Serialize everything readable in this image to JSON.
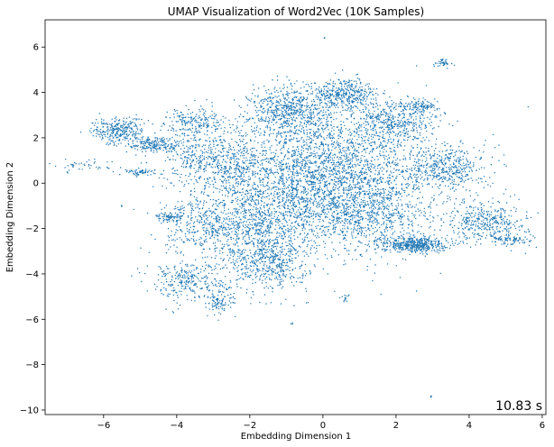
{
  "chart_data": {
    "type": "scatter",
    "title": "UMAP Visualization of Word2Vec (10K Samples)",
    "xlabel": "Embedding Dimension 1",
    "ylabel": "Embedding Dimension 2",
    "xlim": [
      -7.6,
      6.1
    ],
    "ylim": [
      -10.2,
      7.2
    ],
    "xticks": [
      -6,
      -4,
      -2,
      0,
      2,
      4,
      6
    ],
    "yticks": [
      6,
      4,
      2,
      0,
      -2,
      -4,
      -6,
      -8,
      -10
    ],
    "grid": false,
    "legend": "none",
    "marker_color": "#1f77b4",
    "n_points": 10000,
    "clusters": [
      {
        "cx": 0.0,
        "cy": 0.2,
        "sx": 1.55,
        "sy": 1.45,
        "w": 34
      },
      {
        "cx": -0.9,
        "cy": 3.2,
        "sx": 0.55,
        "sy": 0.55,
        "w": 6
      },
      {
        "cx": 0.6,
        "cy": 3.9,
        "sx": 0.45,
        "sy": 0.35,
        "w": 4
      },
      {
        "cx": -1.5,
        "cy": -3.5,
        "sx": 0.55,
        "sy": 0.65,
        "w": 5
      },
      {
        "cx": 2.5,
        "cy": -2.7,
        "sx": 0.45,
        "sy": 0.18,
        "w": 5
      },
      {
        "cx": -3.7,
        "cy": -4.3,
        "sx": 0.55,
        "sy": 0.45,
        "w": 3
      },
      {
        "cx": -5.6,
        "cy": 2.3,
        "sx": 0.35,
        "sy": 0.3,
        "w": 3
      },
      {
        "cx": -4.6,
        "cy": 1.7,
        "sx": 0.35,
        "sy": 0.18,
        "w": 2
      },
      {
        "cx": -3.0,
        "cy": 1.0,
        "sx": 0.7,
        "sy": 0.6,
        "w": 5
      },
      {
        "cx": 3.4,
        "cy": 0.7,
        "sx": 0.5,
        "sy": 0.5,
        "w": 4
      },
      {
        "cx": 4.5,
        "cy": -1.7,
        "sx": 0.55,
        "sy": 0.45,
        "w": 4
      },
      {
        "cx": 2.0,
        "cy": 2.7,
        "sx": 0.55,
        "sy": 0.45,
        "w": 4
      },
      {
        "cx": -1.8,
        "cy": -1.9,
        "sx": 0.8,
        "sy": 0.8,
        "w": 6
      },
      {
        "cx": -3.3,
        "cy": -1.9,
        "sx": 0.5,
        "sy": 0.6,
        "w": 3
      },
      {
        "cx": -3.5,
        "cy": 2.7,
        "sx": 0.4,
        "sy": 0.3,
        "w": 2
      },
      {
        "cx": -2.8,
        "cy": -5.2,
        "sx": 0.2,
        "sy": 0.3,
        "w": 1
      },
      {
        "cx": 1.3,
        "cy": -1.5,
        "sx": 0.7,
        "sy": 0.6,
        "w": 4
      },
      {
        "cx": 3.3,
        "cy": 5.3,
        "sx": 0.12,
        "sy": 0.1,
        "w": 0.4
      },
      {
        "cx": 0.6,
        "cy": -5.1,
        "sx": 0.06,
        "sy": 0.08,
        "w": 0.15
      },
      {
        "cx": -5.0,
        "cy": 0.5,
        "sx": 0.22,
        "sy": 0.07,
        "w": 0.6
      },
      {
        "cx": -4.2,
        "cy": -1.5,
        "sx": 0.2,
        "sy": 0.12,
        "w": 0.8
      },
      {
        "cx": 5.2,
        "cy": -2.5,
        "sx": 0.3,
        "sy": 0.1,
        "w": 0.8
      },
      {
        "cx": 2.7,
        "cy": 3.4,
        "sx": 0.25,
        "sy": 0.15,
        "w": 1
      },
      {
        "cx": -6.5,
        "cy": 0.8,
        "sx": 0.4,
        "sy": 0.15,
        "w": 0.4
      }
    ],
    "outliers": [
      {
        "x": 0.05,
        "y": 6.4
      },
      {
        "x": -0.85,
        "y": -6.2
      },
      {
        "x": 2.95,
        "y": -9.4
      },
      {
        "x": -5.5,
        "y": -1.0
      },
      {
        "x": -7.0,
        "y": 0.45
      }
    ]
  },
  "timer": "10.83 s"
}
